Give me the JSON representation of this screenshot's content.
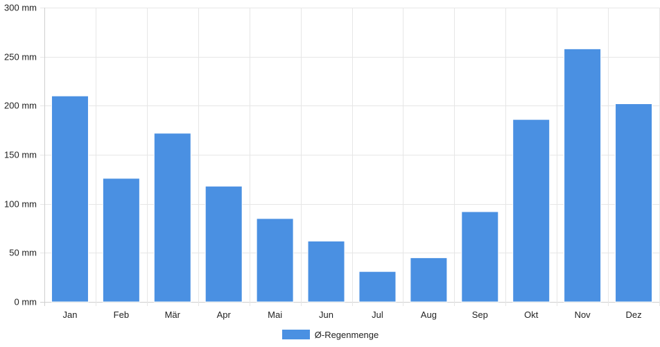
{
  "chart_data": {
    "type": "bar",
    "title": "",
    "xlabel": "",
    "ylabel": "",
    "categories": [
      "Jan",
      "Feb",
      "Mär",
      "Apr",
      "Mai",
      "Jun",
      "Jul",
      "Aug",
      "Sep",
      "Okt",
      "Nov",
      "Dez"
    ],
    "series": [
      {
        "name": "Ø-Regenmenge",
        "values": [
          210,
          126,
          172,
          118,
          85,
          62,
          31,
          45,
          92,
          186,
          258,
          202
        ],
        "color": "#4a90e2"
      }
    ],
    "ylim": [
      0,
      300
    ],
    "yticks": [
      0,
      50,
      100,
      150,
      200,
      250,
      300
    ],
    "ytick_suffix": " mm",
    "grid": true,
    "legend_position": "bottom"
  },
  "legend": {
    "label": "Ø-Regenmenge",
    "color": "#4a90e2"
  }
}
